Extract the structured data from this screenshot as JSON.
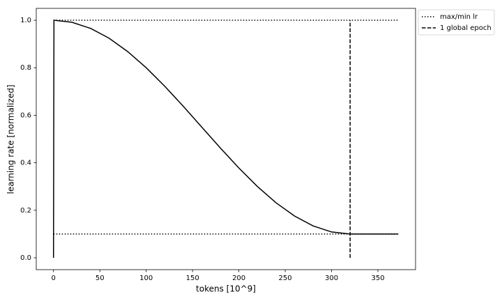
{
  "chart_data": {
    "type": "line",
    "x": [
      0,
      0.5,
      20,
      40,
      60,
      80,
      100,
      120,
      140,
      160,
      180,
      200,
      220,
      240,
      260,
      280,
      300,
      320,
      372
    ],
    "values": [
      0,
      1,
      0.9914,
      0.9657,
      0.9242,
      0.8682,
      0.8,
      0.7222,
      0.6378,
      0.55,
      0.4622,
      0.3778,
      0.3,
      0.2318,
      0.1758,
      0.1343,
      0.1086,
      0.1,
      0.1
    ],
    "color": "#000000",
    "reference_lines": [
      {
        "name": "max/min lr",
        "orientation": "horizontal",
        "style": "dotted",
        "values": [
          1,
          0.1
        ],
        "span": [
          0,
          372
        ],
        "color": "#000000"
      },
      {
        "name": "1 global epoch",
        "orientation": "vertical",
        "style": "dashed",
        "values": [
          320
        ],
        "span": [
          0,
          1
        ],
        "color": "#000000"
      }
    ],
    "xlabel": "tokens [10^9]",
    "ylabel": "learning rate [normalized]",
    "xlim": [
      -18.6,
      390.6
    ],
    "ylim": [
      -0.05,
      1.05
    ],
    "xticks": [
      0,
      50,
      100,
      150,
      200,
      250,
      300,
      350
    ],
    "yticks": [
      {
        "value": 0,
        "label": "0.0"
      },
      0.2,
      0.4,
      0.6,
      0.8,
      {
        "value": 1,
        "label": "1.0"
      }
    ],
    "grid": false,
    "legend": "outside upper right"
  }
}
